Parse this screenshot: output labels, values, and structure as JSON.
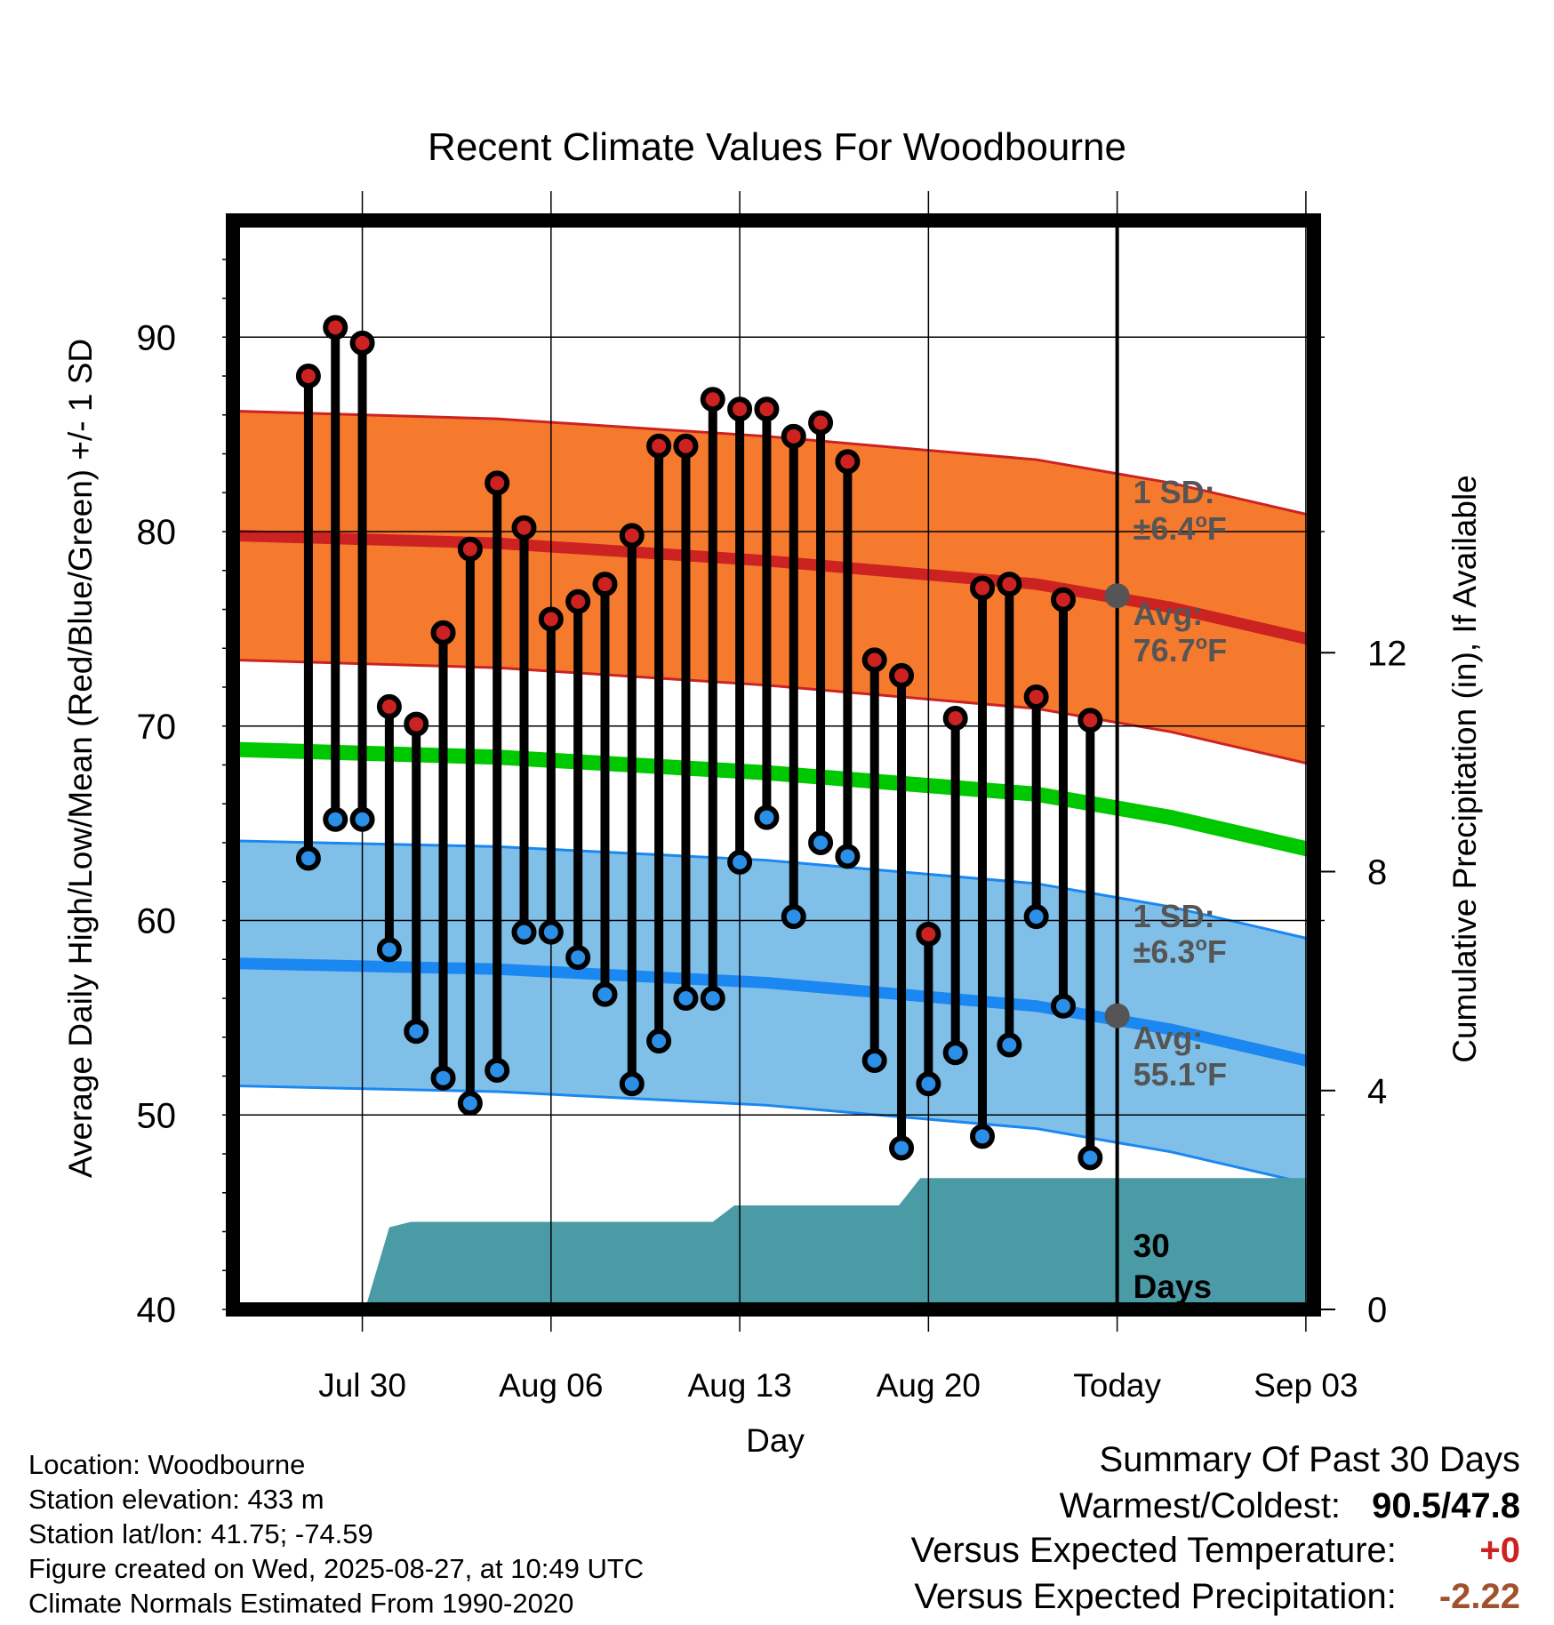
{
  "chart_data": {
    "type": "line",
    "title": "Recent Climate Values For Woodbourne",
    "xlabel": "Day",
    "ylabel": "Average Daily High/Low/Mean (Red/Blue/Green) +/- 1 SD",
    "y2label": "Cumulative Precipitation (in), If Available",
    "ylim": [
      40,
      96
    ],
    "y2lim": [
      0,
      19.9
    ],
    "xlim": [
      -4.8,
      35.3
    ],
    "yticks": [
      40,
      50,
      60,
      70,
      80,
      90
    ],
    "y2ticks": [
      0,
      4,
      8,
      12
    ],
    "x_tick_positions": [
      0,
      7,
      14,
      21,
      28,
      35
    ],
    "x_tick_labels": [
      "Jul 30",
      "Aug 06",
      "Aug 13",
      "Aug 20",
      "Today",
      "Sep 03"
    ],
    "grid": true,
    "days": [
      -2,
      -1,
      0,
      1,
      2,
      3,
      4,
      5,
      6,
      7,
      8,
      9,
      10,
      11,
      12,
      13,
      14,
      15,
      16,
      17,
      18,
      19,
      20,
      21,
      22,
      23,
      24,
      25,
      26,
      27
    ],
    "series": [
      {
        "name": "High",
        "color": "#cc2222",
        "values": [
          88.0,
          90.5,
          89.7,
          71.0,
          70.1,
          74.8,
          79.1,
          82.5,
          80.2,
          75.5,
          76.4,
          77.3,
          79.8,
          84.4,
          84.4,
          86.8,
          86.3,
          86.3,
          84.9,
          85.6,
          83.6,
          73.4,
          72.6,
          59.3,
          70.4,
          77.1,
          77.3,
          71.5,
          76.5,
          70.3
        ]
      },
      {
        "name": "Low",
        "color": "#2b8fe8",
        "values": [
          63.2,
          65.2,
          65.2,
          58.5,
          54.3,
          51.9,
          50.6,
          52.3,
          59.4,
          59.4,
          58.1,
          56.2,
          51.6,
          53.8,
          56.0,
          56.0,
          63.0,
          65.3,
          60.2,
          64.0,
          63.3,
          52.8,
          48.3,
          51.6,
          53.2,
          48.9,
          53.6,
          60.2,
          55.6,
          47.8
        ]
      }
    ],
    "normal_high": {
      "x": [
        -4.8,
        5,
        15,
        25,
        30,
        35.3
      ],
      "values": [
        79.8,
        79.4,
        78.5,
        77.3,
        76.1,
        74.4
      ],
      "sd": "±6.4°F",
      "avg_label": "76.7°F",
      "color": "#cc2222",
      "band_color": "#f57a2e"
    },
    "normal_low": {
      "x": [
        -4.8,
        5,
        15,
        25,
        30,
        35.3
      ],
      "values": [
        57.8,
        57.5,
        56.8,
        55.6,
        54.4,
        52.7
      ],
      "sd": "±6.3°F",
      "avg_label": "55.1°F",
      "color": "#1b87f0",
      "band_color": "#80bfe8"
    },
    "normal_mean": {
      "x": [
        -4.8,
        5,
        15,
        25,
        30,
        35.3
      ],
      "values": [
        68.8,
        68.4,
        67.6,
        66.5,
        65.3,
        63.6
      ],
      "color": "#00c800"
    },
    "precip": {
      "x": [
        -4.8,
        0.1,
        1.0,
        1.8,
        13.0,
        13.8,
        19.9,
        20.7,
        35.3
      ],
      "values": [
        0,
        0,
        1.5,
        1.6,
        1.6,
        1.9,
        1.9,
        2.4,
        2.4
      ],
      "color": "#4a9ba5"
    },
    "today_x": 28,
    "annotations": {
      "high_sd_label": "1 SD:",
      "high_sd_value": "±6.4",
      "high_avg_label": "Avg:",
      "high_avg_value": "76.7",
      "low_sd_label": "1 SD:",
      "low_sd_value": "±6.3",
      "low_avg_label": "Avg:",
      "low_avg_value": "55.1",
      "degree_unit": "F",
      "days_label_1": "30",
      "days_label_2": "Days"
    }
  },
  "info": {
    "location": "Location: Woodbourne",
    "elevation": "Station elevation: 433 m",
    "latlon": "Station lat/lon: 41.75; -74.59",
    "created": "Figure created on Wed, 2025-08-27, at 10:49 UTC",
    "normals": "Climate Normals Estimated From 1990-2020"
  },
  "summary": {
    "title": "Summary Of Past 30 Days",
    "warm_cold_label": "Warmest/Coldest:",
    "warm_cold_value": "90.5/47.8",
    "temp_label": "Versus Expected Temperature:",
    "temp_value": "+0",
    "temp_color": "#cc2222",
    "precip_label": "Versus Expected Precipitation:",
    "precip_value": "-2.22",
    "precip_color": "#a0522d"
  }
}
